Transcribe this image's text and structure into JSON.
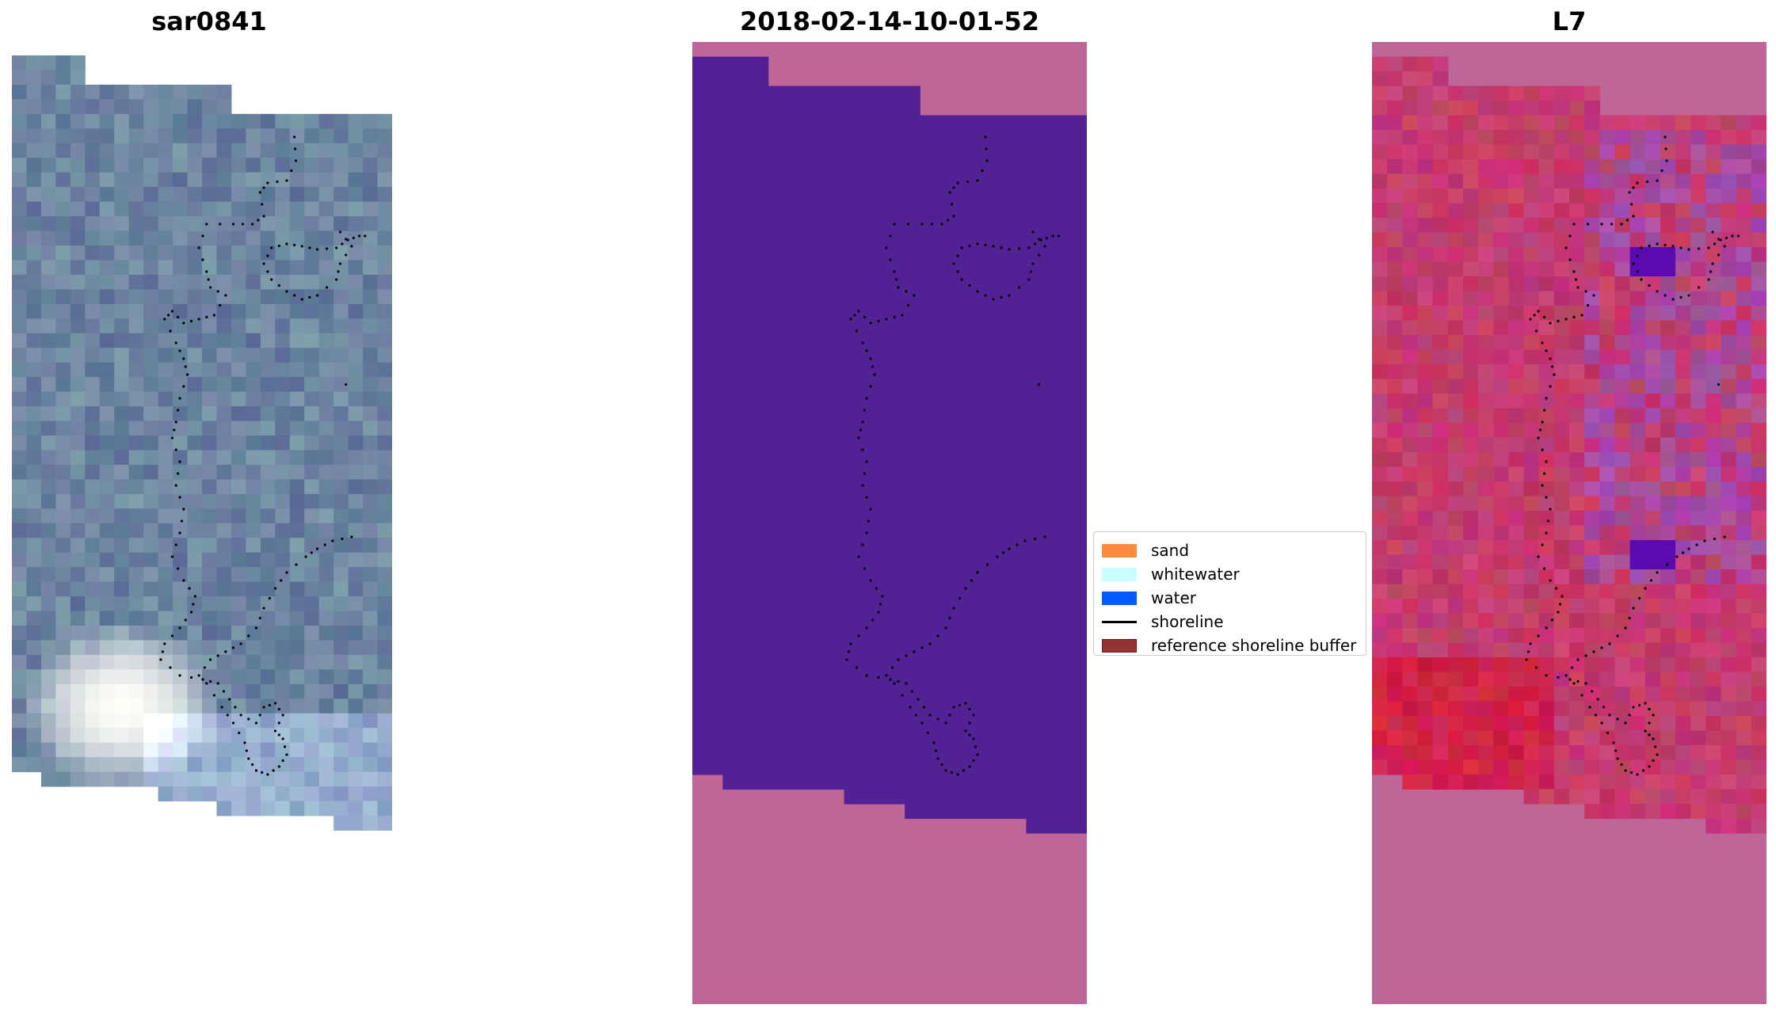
{
  "panels": {
    "rgb": {
      "title": "sar0841"
    },
    "classification": {
      "title": "2018-02-14-10-01-52"
    },
    "index": {
      "title": "L7"
    }
  },
  "legend": {
    "items": [
      {
        "label": "sand",
        "color": "#ff8c3c",
        "kind": "patch"
      },
      {
        "label": "whitewater",
        "color": "#c8ffff",
        "kind": "patch"
      },
      {
        "label": "water",
        "color": "#005aff",
        "kind": "patch"
      },
      {
        "label": "shoreline",
        "color": "#000000",
        "kind": "line"
      },
      {
        "label": "reference shoreline buffer",
        "color": "#963232",
        "kind": "patch"
      }
    ]
  },
  "colors": {
    "classification_fill": "#522295",
    "masked": "#bd6697",
    "shoreline_dots": "#000000"
  }
}
